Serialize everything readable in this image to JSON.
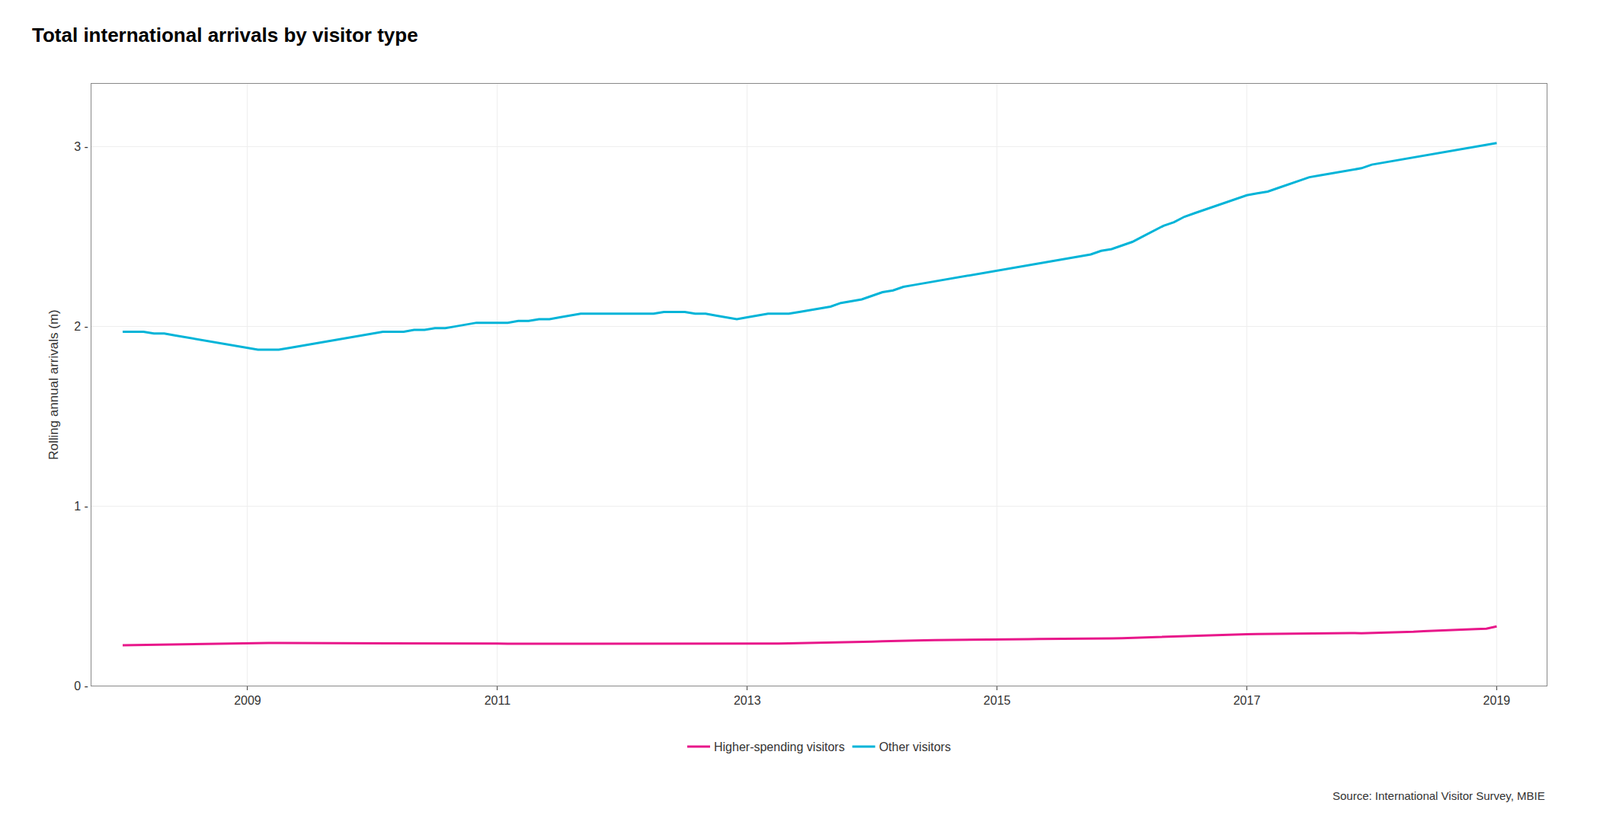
{
  "chart_data": {
    "type": "line",
    "title": "Total international arrivals by visitor type",
    "ylabel": "Rolling annual arrivals (m)",
    "annotations": [
      "Source: International Visitor Survey, MBIE"
    ],
    "x": [
      2008.0,
      2008.083,
      2008.167,
      2008.25,
      2008.333,
      2008.417,
      2008.5,
      2008.583,
      2008.667,
      2008.75,
      2008.833,
      2008.917,
      2009.0,
      2009.083,
      2009.167,
      2009.25,
      2009.333,
      2009.417,
      2009.5,
      2009.583,
      2009.667,
      2009.75,
      2009.833,
      2009.917,
      2010.0,
      2010.083,
      2010.167,
      2010.25,
      2010.333,
      2010.417,
      2010.5,
      2010.583,
      2010.667,
      2010.75,
      2010.833,
      2010.917,
      2011.0,
      2011.083,
      2011.167,
      2011.25,
      2011.333,
      2011.417,
      2011.5,
      2011.583,
      2011.667,
      2011.75,
      2011.833,
      2011.917,
      2012.0,
      2012.083,
      2012.167,
      2012.25,
      2012.333,
      2012.417,
      2012.5,
      2012.583,
      2012.667,
      2012.75,
      2012.833,
      2012.917,
      2013.0,
      2013.083,
      2013.167,
      2013.25,
      2013.333,
      2013.417,
      2013.5,
      2013.583,
      2013.667,
      2013.75,
      2013.833,
      2013.917,
      2014.0,
      2014.083,
      2014.167,
      2014.25,
      2014.333,
      2014.417,
      2014.5,
      2014.583,
      2014.667,
      2014.75,
      2014.833,
      2014.917,
      2015.0,
      2015.083,
      2015.167,
      2015.25,
      2015.333,
      2015.417,
      2015.5,
      2015.583,
      2015.667,
      2015.75,
      2015.833,
      2015.917,
      2016.0,
      2016.083,
      2016.167,
      2016.25,
      2016.333,
      2016.417,
      2016.5,
      2016.583,
      2016.667,
      2016.75,
      2016.833,
      2016.917,
      2017.0,
      2017.083,
      2017.167,
      2017.25,
      2017.333,
      2017.417,
      2017.5,
      2017.583,
      2017.667,
      2017.75,
      2017.833,
      2017.917,
      2018.0,
      2018.083,
      2018.167,
      2018.25,
      2018.333,
      2018.417,
      2018.5,
      2018.583,
      2018.667,
      2018.75,
      2018.833,
      2018.917,
      2019.0
    ],
    "series": [
      {
        "name": "Higher-spending visitors",
        "color": "#e8178a",
        "values": [
          0.225,
          0.226,
          0.227,
          0.228,
          0.228,
          0.229,
          0.23,
          0.231,
          0.232,
          0.233,
          0.233,
          0.234,
          0.235,
          0.236,
          0.237,
          0.237,
          0.237,
          0.237,
          0.237,
          0.236,
          0.235,
          0.235,
          0.235,
          0.235,
          0.235,
          0.235,
          0.235,
          0.235,
          0.235,
          0.235,
          0.234,
          0.234,
          0.234,
          0.234,
          0.234,
          0.234,
          0.234,
          0.233,
          0.233,
          0.233,
          0.233,
          0.233,
          0.233,
          0.233,
          0.233,
          0.233,
          0.234,
          0.234,
          0.234,
          0.234,
          0.234,
          0.234,
          0.234,
          0.234,
          0.234,
          0.233,
          0.233,
          0.232,
          0.231,
          0.231,
          0.231,
          0.232,
          0.233,
          0.234,
          0.235,
          0.236,
          0.237,
          0.238,
          0.24,
          0.241,
          0.242,
          0.244,
          0.245,
          0.247,
          0.249,
          0.25,
          0.251,
          0.252,
          0.253,
          0.254,
          0.254,
          0.255,
          0.256,
          0.257,
          0.258,
          0.258,
          0.259,
          0.259,
          0.26,
          0.26,
          0.261,
          0.261,
          0.261,
          0.261,
          0.262,
          0.263,
          0.264,
          0.266,
          0.268,
          0.27,
          0.272,
          0.274,
          0.277,
          0.279,
          0.281,
          0.283,
          0.284,
          0.285,
          0.286,
          0.287,
          0.288,
          0.289,
          0.29,
          0.291,
          0.292,
          0.293,
          0.293,
          0.293,
          0.293,
          0.292,
          0.293,
          0.294,
          0.296,
          0.298,
          0.3,
          0.303,
          0.306,
          0.309,
          0.311,
          0.313,
          0.315,
          0.317,
          0.33
        ]
      },
      {
        "name": "Other visitors",
        "color": "#00b4d8",
        "values": [
          1.97,
          1.97,
          1.97,
          1.96,
          1.96,
          1.95,
          1.94,
          1.93,
          1.92,
          1.91,
          1.9,
          1.89,
          1.88,
          1.87,
          1.87,
          1.87,
          1.88,
          1.89,
          1.9,
          1.91,
          1.92,
          1.93,
          1.94,
          1.95,
          1.96,
          1.97,
          1.97,
          1.97,
          1.98,
          1.98,
          1.99,
          1.99,
          2.0,
          2.01,
          2.02,
          2.02,
          2.02,
          2.02,
          2.03,
          2.03,
          2.04,
          2.04,
          2.05,
          2.06,
          2.07,
          2.07,
          2.07,
          2.07,
          2.07,
          2.07,
          2.07,
          2.07,
          2.08,
          2.08,
          2.08,
          2.07,
          2.07,
          2.06,
          2.05,
          2.04,
          2.05,
          2.06,
          2.07,
          2.07,
          2.07,
          2.08,
          2.09,
          2.1,
          2.11,
          2.13,
          2.14,
          2.15,
          2.17,
          2.19,
          2.2,
          2.22,
          2.23,
          2.24,
          2.25,
          2.26,
          2.27,
          2.28,
          2.29,
          2.3,
          2.31,
          2.32,
          2.33,
          2.34,
          2.35,
          2.36,
          2.37,
          2.38,
          2.39,
          2.4,
          2.42,
          2.43,
          2.45,
          2.47,
          2.5,
          2.53,
          2.56,
          2.58,
          2.61,
          2.63,
          2.65,
          2.67,
          2.69,
          2.71,
          2.73,
          2.74,
          2.75,
          2.77,
          2.79,
          2.81,
          2.83,
          2.84,
          2.85,
          2.86,
          2.87,
          2.88,
          2.9,
          2.91,
          2.92,
          2.93,
          2.94,
          2.95,
          2.96,
          2.97,
          2.98,
          2.99,
          3.0,
          3.01,
          3.02
        ]
      }
    ],
    "xlim": [
      2007.75,
      2019.4
    ],
    "xticks": [
      2009,
      2011,
      2013,
      2015,
      2017,
      2019
    ],
    "ylim": [
      0,
      3.35
    ],
    "yticks": [
      {
        "value": 0,
        "label": "0 -"
      },
      {
        "value": 1,
        "label": "1 -"
      },
      {
        "value": 2,
        "label": "2 -"
      },
      {
        "value": 3,
        "label": "3 -"
      }
    ],
    "grid": true,
    "legend": "bottom"
  }
}
